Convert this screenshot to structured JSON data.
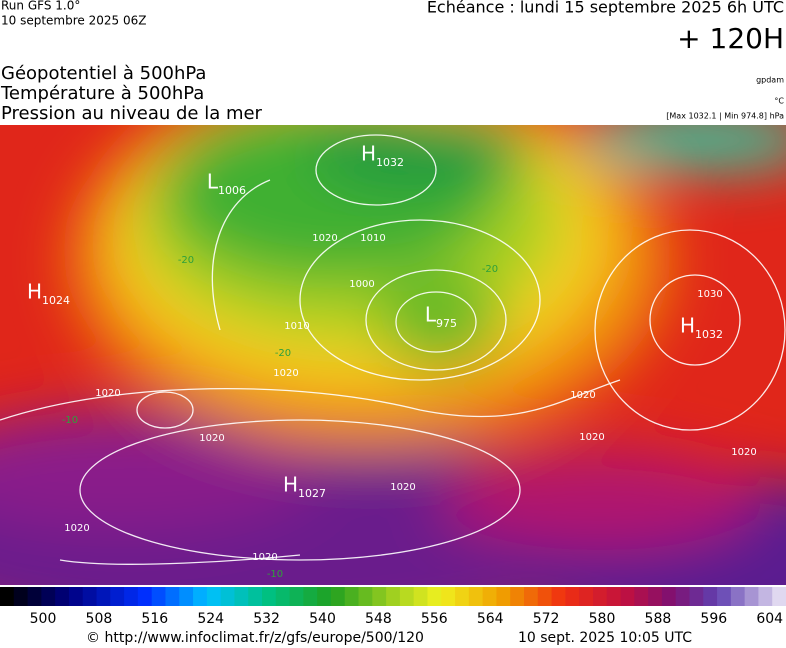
{
  "header": {
    "run": "Run GFS 1.0°",
    "run_date": "10 septembre 2025 06Z",
    "echeance": "Echéance : lundi 15 septembre 2025 6h UTC",
    "lead": "+ 120H"
  },
  "titles": [
    "Géopotentiel à 500hPa",
    "Température à 500hPa",
    "Pression au niveau de la mer"
  ],
  "units": [
    "gpdam",
    "°C",
    "[Max 1032.1 | Min 974.8] hPa"
  ],
  "map": {
    "centers": [
      {
        "letter": "H",
        "value": "1032"
      },
      {
        "letter": "L",
        "value": "1006"
      },
      {
        "letter": "H",
        "value": "1024"
      },
      {
        "letter": "L",
        "value": "975"
      },
      {
        "letter": "H",
        "value": "1032"
      },
      {
        "letter": "H",
        "value": "1027"
      }
    ],
    "isobar_labels": [
      "1020",
      "1010",
      "1000",
      "1010",
      "1020",
      "1020",
      "1020",
      "1030",
      "1020",
      "1020",
      "1020",
      "1020",
      "1020",
      "1020"
    ],
    "temperature_labels": [
      "-20",
      "-20",
      "-20",
      "-10",
      "-10"
    ]
  },
  "colorbar": {
    "ticks": [
      500,
      508,
      516,
      524,
      532,
      540,
      548,
      556,
      564,
      572,
      580,
      588,
      596,
      604
    ]
  },
  "footer": {
    "source": "© http://www.infoclimat.fr/z/gfs/europe/500/120",
    "timestamp": "10 sept. 2025 10:05 UTC"
  }
}
